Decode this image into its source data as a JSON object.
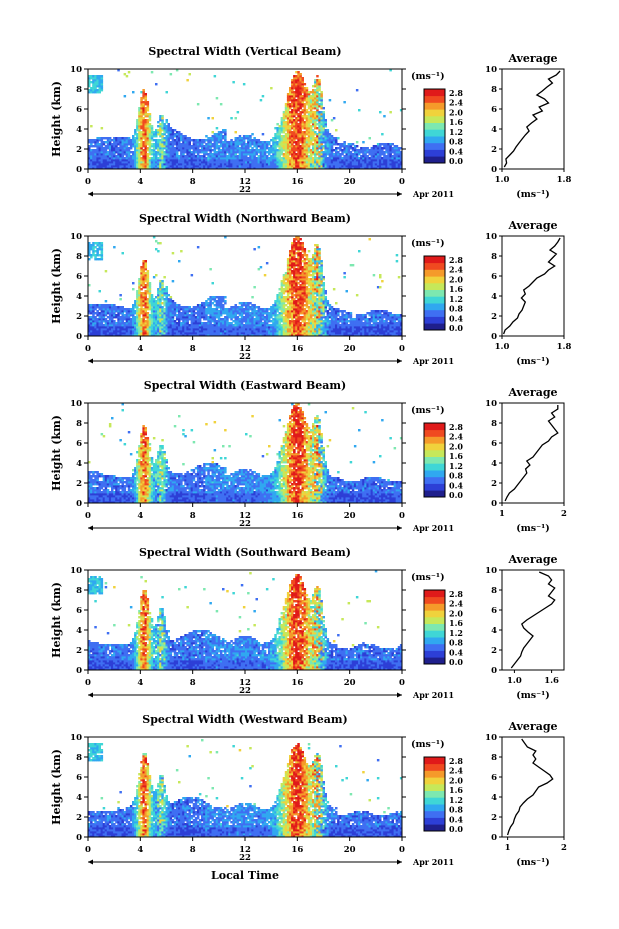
{
  "figure": {
    "xlabel": "Local Time",
    "day_label": "22",
    "date_label": "Apr 2011",
    "ylabel": "Height (km)",
    "unit": "(ms⁻¹)",
    "avg_title": "Average"
  },
  "colorbar": {
    "ticks": [
      "2.8",
      "2.4",
      "2.0",
      "1.6",
      "1.2",
      "0.8",
      "0.4",
      "0.0"
    ],
    "colors": [
      "#1f1f8c",
      "#2d3fd6",
      "#3f6ff2",
      "#30a8f0",
      "#3fd6d6",
      "#7de8b0",
      "#c6e85a",
      "#f0d23c",
      "#f59a2a",
      "#f04a20",
      "#e01a1a"
    ]
  },
  "chart_data": [
    {
      "type": "heatmap",
      "title": "Spectral Width (Vertical Beam)",
      "x_ticks": [
        "0",
        "4",
        "8",
        "12",
        "16",
        "20",
        "0"
      ],
      "y_ticks": [
        "0",
        "2",
        "4",
        "6",
        "8",
        "10"
      ],
      "xlim": [
        0,
        24
      ],
      "ylim": [
        0,
        10
      ],
      "average": {
        "xlim": [
          1.0,
          1.8
        ],
        "x_tick_labels": [
          "1.0",
          "1.8"
        ],
        "profile": [
          [
            1.03,
            0.2
          ],
          [
            1.06,
            0.6
          ],
          [
            1.05,
            1.0
          ],
          [
            1.1,
            1.4
          ],
          [
            1.15,
            1.8
          ],
          [
            1.18,
            2.2
          ],
          [
            1.22,
            2.6
          ],
          [
            1.26,
            3.0
          ],
          [
            1.3,
            3.4
          ],
          [
            1.35,
            3.8
          ],
          [
            1.32,
            4.2
          ],
          [
            1.38,
            4.6
          ],
          [
            1.45,
            5.0
          ],
          [
            1.4,
            5.4
          ],
          [
            1.52,
            5.8
          ],
          [
            1.48,
            6.2
          ],
          [
            1.6,
            6.6
          ],
          [
            1.55,
            7.0
          ],
          [
            1.45,
            7.4
          ],
          [
            1.52,
            7.8
          ],
          [
            1.58,
            8.2
          ],
          [
            1.65,
            8.6
          ],
          [
            1.6,
            9.0
          ],
          [
            1.7,
            9.4
          ],
          [
            1.75,
            9.8
          ]
        ]
      }
    },
    {
      "type": "heatmap",
      "title": "Spectral Width (Northward Beam)",
      "x_ticks": [
        "0",
        "4",
        "8",
        "12",
        "16",
        "20",
        "0"
      ],
      "y_ticks": [
        "0",
        "2",
        "4",
        "6",
        "8",
        "10"
      ],
      "xlim": [
        0,
        24
      ],
      "ylim": [
        0,
        10
      ],
      "average": {
        "xlim": [
          1.0,
          1.8
        ],
        "x_tick_labels": [
          "1.0",
          "1.8"
        ],
        "profile": [
          [
            1.02,
            0.2
          ],
          [
            1.04,
            0.6
          ],
          [
            1.1,
            1.0
          ],
          [
            1.14,
            1.4
          ],
          [
            1.2,
            1.8
          ],
          [
            1.22,
            2.2
          ],
          [
            1.26,
            2.6
          ],
          [
            1.28,
            3.0
          ],
          [
            1.3,
            3.4
          ],
          [
            1.25,
            3.8
          ],
          [
            1.3,
            4.2
          ],
          [
            1.28,
            4.6
          ],
          [
            1.35,
            5.0
          ],
          [
            1.4,
            5.4
          ],
          [
            1.45,
            5.8
          ],
          [
            1.55,
            6.2
          ],
          [
            1.6,
            6.6
          ],
          [
            1.68,
            7.0
          ],
          [
            1.6,
            7.4
          ],
          [
            1.65,
            7.8
          ],
          [
            1.7,
            8.2
          ],
          [
            1.62,
            8.6
          ],
          [
            1.68,
            9.0
          ],
          [
            1.72,
            9.4
          ],
          [
            1.75,
            9.8
          ]
        ]
      }
    },
    {
      "type": "heatmap",
      "title": "Spectral Width (Eastward Beam)",
      "x_ticks": [
        "0",
        "4",
        "8",
        "12",
        "16",
        "20",
        "0"
      ],
      "y_ticks": [
        "0",
        "2",
        "4",
        "6",
        "8",
        "10"
      ],
      "xlim": [
        0,
        24
      ],
      "ylim": [
        0,
        10
      ],
      "average": {
        "xlim": [
          1,
          2
        ],
        "x_tick_labels": [
          "1",
          "2"
        ],
        "profile": [
          [
            1.05,
            0.2
          ],
          [
            1.08,
            0.6
          ],
          [
            1.12,
            1.0
          ],
          [
            1.2,
            1.4
          ],
          [
            1.25,
            1.8
          ],
          [
            1.3,
            2.2
          ],
          [
            1.35,
            2.6
          ],
          [
            1.4,
            3.0
          ],
          [
            1.38,
            3.4
          ],
          [
            1.45,
            3.8
          ],
          [
            1.4,
            4.2
          ],
          [
            1.5,
            4.6
          ],
          [
            1.55,
            5.0
          ],
          [
            1.6,
            5.4
          ],
          [
            1.65,
            5.8
          ],
          [
            1.75,
            6.2
          ],
          [
            1.8,
            6.6
          ],
          [
            1.9,
            7.0
          ],
          [
            1.85,
            7.4
          ],
          [
            1.8,
            7.8
          ],
          [
            1.75,
            8.2
          ],
          [
            1.85,
            8.6
          ],
          [
            1.8,
            9.0
          ],
          [
            1.9,
            9.4
          ],
          [
            1.9,
            9.8
          ]
        ]
      }
    },
    {
      "type": "heatmap",
      "title": "Spectral Width (Southward Beam)",
      "x_ticks": [
        "0",
        "4",
        "8",
        "12",
        "16",
        "20",
        "0"
      ],
      "y_ticks": [
        "0",
        "2",
        "4",
        "6",
        "8",
        "10"
      ],
      "xlim": [
        0,
        24
      ],
      "ylim": [
        0,
        10
      ],
      "average": {
        "xlim": [
          0.8,
          1.8
        ],
        "x_tick_labels": [
          "1.0",
          "1.6"
        ],
        "profile": [
          [
            0.95,
            0.2
          ],
          [
            1.0,
            0.6
          ],
          [
            1.05,
            1.0
          ],
          [
            1.1,
            1.4
          ],
          [
            1.12,
            1.8
          ],
          [
            1.15,
            2.2
          ],
          [
            1.2,
            2.6
          ],
          [
            1.25,
            3.0
          ],
          [
            1.3,
            3.4
          ],
          [
            1.22,
            3.8
          ],
          [
            1.15,
            4.2
          ],
          [
            1.12,
            4.6
          ],
          [
            1.2,
            5.0
          ],
          [
            1.3,
            5.4
          ],
          [
            1.4,
            5.8
          ],
          [
            1.5,
            6.2
          ],
          [
            1.6,
            6.6
          ],
          [
            1.65,
            7.0
          ],
          [
            1.55,
            7.4
          ],
          [
            1.6,
            7.8
          ],
          [
            1.65,
            8.2
          ],
          [
            1.55,
            8.6
          ],
          [
            1.6,
            9.0
          ],
          [
            1.55,
            9.4
          ],
          [
            1.4,
            9.8
          ]
        ]
      }
    },
    {
      "type": "heatmap",
      "title": "Spectral Width (Westward Beam)",
      "x_ticks": [
        "0",
        "4",
        "8",
        "12",
        "16",
        "20",
        "0"
      ],
      "y_ticks": [
        "0",
        "2",
        "4",
        "6",
        "8",
        "10"
      ],
      "xlim": [
        0,
        24
      ],
      "ylim": [
        0,
        10
      ],
      "average": {
        "xlim": [
          0.9,
          2.0
        ],
        "x_tick_labels": [
          "1",
          "2"
        ],
        "profile": [
          [
            1.0,
            0.2
          ],
          [
            1.02,
            0.6
          ],
          [
            1.05,
            1.0
          ],
          [
            1.1,
            1.4
          ],
          [
            1.12,
            1.8
          ],
          [
            1.15,
            2.2
          ],
          [
            1.2,
            2.6
          ],
          [
            1.22,
            3.0
          ],
          [
            1.28,
            3.4
          ],
          [
            1.35,
            3.8
          ],
          [
            1.45,
            4.2
          ],
          [
            1.5,
            4.6
          ],
          [
            1.55,
            5.0
          ],
          [
            1.7,
            5.4
          ],
          [
            1.8,
            5.8
          ],
          [
            1.75,
            6.2
          ],
          [
            1.65,
            6.6
          ],
          [
            1.55,
            7.0
          ],
          [
            1.45,
            7.4
          ],
          [
            1.5,
            7.8
          ],
          [
            1.45,
            8.2
          ],
          [
            1.5,
            8.6
          ],
          [
            1.35,
            9.0
          ],
          [
            1.3,
            9.4
          ],
          [
            1.25,
            9.8
          ]
        ]
      }
    }
  ]
}
